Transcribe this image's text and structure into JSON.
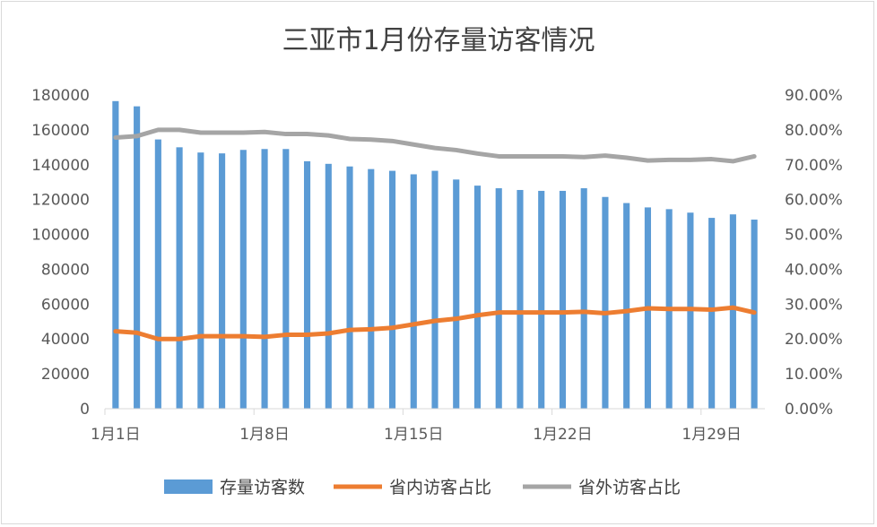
{
  "chart_data": {
    "type": "bar",
    "title": "三亚市1月份存量访客情况",
    "x": [
      "1月1日",
      "1月2日",
      "1月3日",
      "1月4日",
      "1月5日",
      "1月6日",
      "1月7日",
      "1月8日",
      "1月9日",
      "1月10日",
      "1月11日",
      "1月12日",
      "1月13日",
      "1月14日",
      "1月15日",
      "1月16日",
      "1月17日",
      "1月18日",
      "1月19日",
      "1月20日",
      "1月21日",
      "1月22日",
      "1月23日",
      "1月24日",
      "1月25日",
      "1月26日",
      "1月27日",
      "1月28日",
      "1月29日",
      "1月30日",
      "1月31日"
    ],
    "x_tick_labels": [
      "1月1日",
      "1月8日",
      "1月15日",
      "1月22日",
      "1月29日"
    ],
    "x_tick_every": 7,
    "ylim_left": [
      0,
      180000
    ],
    "y_ticks_left": [
      0,
      20000,
      40000,
      60000,
      80000,
      100000,
      120000,
      140000,
      160000,
      180000
    ],
    "ylim_right": [
      0,
      90
    ],
    "y_ticks_right": [
      "0.00%",
      "10.00%",
      "20.00%",
      "30.00%",
      "40.00%",
      "50.00%",
      "60.00%",
      "70.00%",
      "80.00%",
      "90.00%"
    ],
    "grid": false,
    "legend_position": "bottom",
    "series": [
      {
        "name": "存量访客数",
        "kind": "bar",
        "axis": "left",
        "color": "#5b9bd5",
        "values": [
          176500,
          173500,
          154500,
          150000,
          147000,
          146500,
          148500,
          149000,
          149000,
          142000,
          140500,
          139000,
          137500,
          136500,
          134500,
          136500,
          131500,
          128000,
          126500,
          125500,
          125000,
          125000,
          126500,
          121500,
          118000,
          115500,
          114500,
          112500,
          109500,
          111500,
          108500
        ]
      },
      {
        "name": "省内访客占比",
        "kind": "line",
        "axis": "right",
        "color": "#ed7d31",
        "values": [
          22.2,
          21.8,
          20.0,
          20.0,
          20.8,
          20.8,
          20.8,
          20.6,
          21.2,
          21.2,
          21.6,
          22.6,
          22.8,
          23.2,
          24.2,
          25.2,
          25.8,
          26.8,
          27.6,
          27.6,
          27.6,
          27.6,
          27.8,
          27.4,
          28.0,
          28.8,
          28.6,
          28.6,
          28.4,
          29.0,
          27.6
        ]
      },
      {
        "name": "省外访客占比",
        "kind": "line",
        "axis": "right",
        "color": "#a5a5a5",
        "values": [
          77.8,
          78.2,
          80.0,
          80.0,
          79.2,
          79.2,
          79.2,
          79.4,
          78.8,
          78.8,
          78.4,
          77.4,
          77.2,
          76.8,
          75.8,
          74.8,
          74.2,
          73.2,
          72.4,
          72.4,
          72.4,
          72.4,
          72.2,
          72.6,
          72.0,
          71.2,
          71.4,
          71.4,
          71.6,
          71.0,
          72.4
        ]
      }
    ]
  }
}
